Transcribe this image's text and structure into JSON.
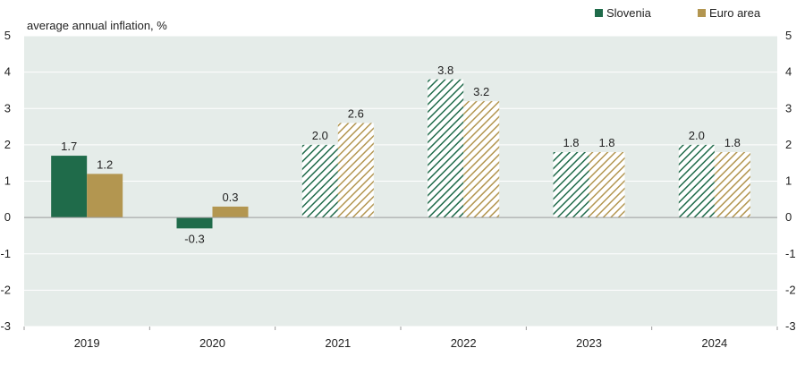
{
  "chart_data": {
    "type": "bar",
    "ylabel": "average annual inflation, %",
    "categories": [
      "2019",
      "2020",
      "2021",
      "2022",
      "2023",
      "2024"
    ],
    "ylim": [
      -3,
      5
    ],
    "yticks": [
      5,
      4,
      3,
      2,
      1,
      0,
      -1,
      -2,
      -3
    ],
    "grid": true,
    "legend_position": "top-right",
    "series": [
      {
        "name": "Slovenia",
        "color": "#1f6b4a",
        "values": [
          1.7,
          -0.3,
          2.0,
          3.8,
          1.8,
          2.0
        ],
        "labels": [
          "1.7",
          "-0.3",
          "2.0",
          "3.8",
          "1.8",
          "2.0"
        ],
        "hatched": [
          false,
          false,
          true,
          true,
          true,
          true
        ]
      },
      {
        "name": "Euro area",
        "color": "#b39650",
        "values": [
          1.2,
          0.3,
          2.6,
          3.2,
          1.8,
          1.8
        ],
        "labels": [
          "1.2",
          "0.3",
          "2.6",
          "3.2",
          "1.8",
          "1.8"
        ],
        "hatched": [
          false,
          false,
          true,
          true,
          true,
          true
        ]
      }
    ]
  }
}
